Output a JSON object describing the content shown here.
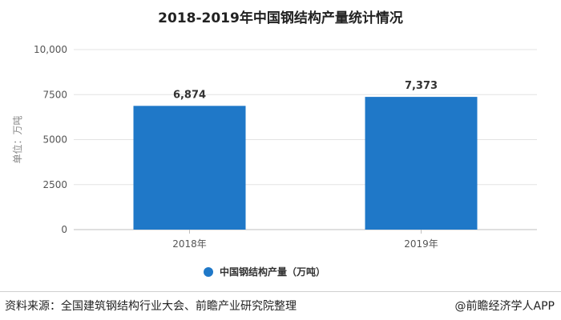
{
  "chart_data": {
    "type": "bar",
    "title": "2018-2019年中国钢结构产量统计情况",
    "ylabel": "单位：万吨",
    "xlabel": "",
    "categories": [
      "2018年",
      "2019年"
    ],
    "series": [
      {
        "name": "中国钢结构产量（万吨）",
        "values": [
          6874,
          7373
        ],
        "data_labels": [
          "6,874",
          "7,373"
        ],
        "color": "#1f78c8"
      }
    ],
    "ylim": [
      0,
      10000
    ],
    "yticks": [
      0,
      2500,
      5000,
      7500,
      10000
    ],
    "ytick_labels": [
      "0",
      "2500",
      "5000",
      "7500",
      "10,000"
    ],
    "grid": true,
    "legend_position": "bottom"
  },
  "footer": {
    "source": "资料来源：全国建筑钢结构行业大会、前瞻产业研究院整理",
    "brand": "@前瞻经济学人APP"
  }
}
